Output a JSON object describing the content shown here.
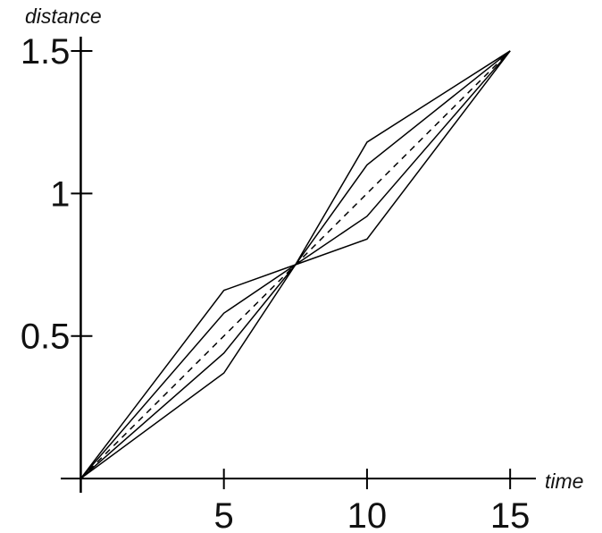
{
  "chart_data": {
    "type": "line",
    "x_label": "time",
    "y_label": "distance",
    "x": [
      0,
      5,
      7.5,
      10,
      15
    ],
    "series": [
      {
        "color": "#000000",
        "style": "solid",
        "values": [
          0,
          0.66,
          0.75,
          0.84,
          1.5
        ]
      },
      {
        "color": "#000000",
        "style": "solid",
        "values": [
          0,
          0.58,
          0.75,
          0.92,
          1.5
        ]
      },
      {
        "color": "#000000",
        "style": "solid",
        "values": [
          0,
          0.44,
          0.75,
          1.1,
          1.5
        ]
      },
      {
        "color": "#000000",
        "style": "solid",
        "values": [
          0,
          0.37,
          0.75,
          1.18,
          1.5
        ]
      },
      {
        "color": "#000000",
        "style": "dashed",
        "values": [
          0,
          0.5,
          0.75,
          1.0,
          1.5
        ]
      }
    ],
    "xlim": [
      -0.7,
      15.9
    ],
    "ylim": [
      -0.05,
      1.55
    ],
    "xticks": [
      5,
      10,
      15
    ],
    "yticks": [
      0.5,
      1,
      1.5
    ],
    "grid": false
  }
}
